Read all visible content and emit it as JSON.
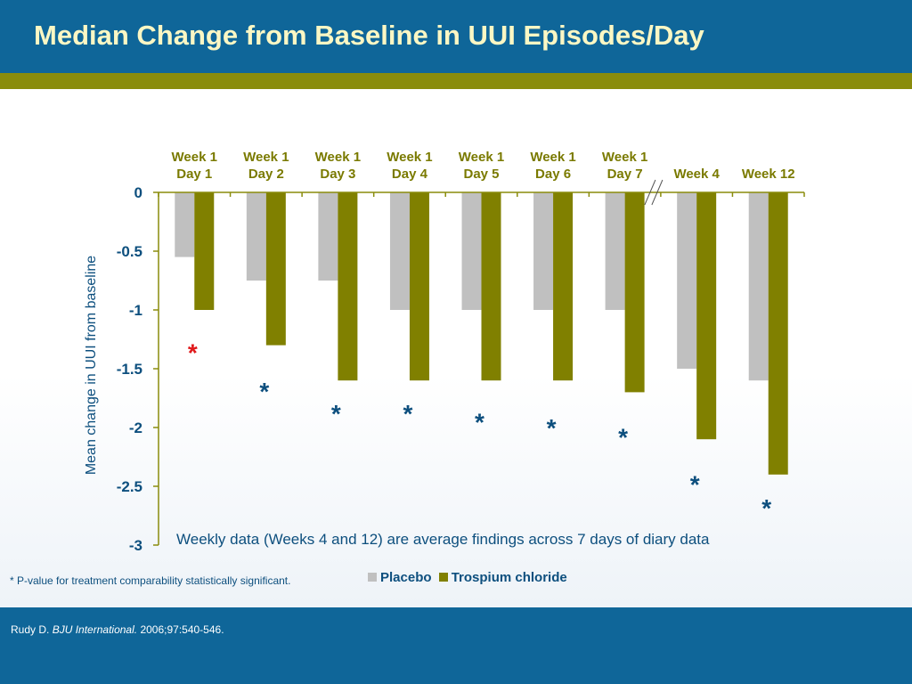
{
  "slide": {
    "title": "Median Change from Baseline in UUI Episodes/Day",
    "note": "Weekly data (Weeks 4 and 12) are average findings across 7 days of diary data",
    "footnote": "* P-value for treatment comparability statistically significant.",
    "citation": {
      "author": "Rudy D.",
      "journal": "BJU International.",
      "details": "2006;97:540-546."
    }
  },
  "colors": {
    "header": "#0f6699",
    "band": "#8a8c0c",
    "placebo": "#c0c0c0",
    "trospium": "#808000",
    "significance_first": "#e0191b",
    "significance": "#0d4f7e"
  },
  "chart_data": {
    "type": "bar",
    "title": "Median Change from Baseline in UUI Episodes/Day",
    "xlabel": "",
    "ylabel": "Mean change in UUI from baseline",
    "ylim": [
      -3,
      0
    ],
    "yticks": [
      0,
      -0.5,
      -1,
      -1.5,
      -2,
      -2.5,
      -3
    ],
    "ytick_labels": [
      "0",
      "-0.5",
      "-1",
      "-1.5",
      "-2",
      "-2.5",
      "-3"
    ],
    "x_axis_position": "top",
    "axis_break_after_index": 6,
    "categories": [
      [
        "Week 1",
        "Day 1"
      ],
      [
        "Week 1",
        "Day 2"
      ],
      [
        "Week 1",
        "Day 3"
      ],
      [
        "Week 1",
        "Day 4"
      ],
      [
        "Week 1",
        "Day 5"
      ],
      [
        "Week 1",
        "Day 6"
      ],
      [
        "Week 1",
        "Day 7"
      ],
      [
        "Week 4"
      ],
      [
        "Week 12"
      ]
    ],
    "series": [
      {
        "name": "Placebo",
        "values": [
          -0.55,
          -0.75,
          -0.75,
          -1.0,
          -1.0,
          -1.0,
          -1.0,
          -1.5,
          -1.6
        ]
      },
      {
        "name": "Trospium chloride",
        "values": [
          -1.0,
          -1.3,
          -1.6,
          -1.6,
          -1.6,
          -1.6,
          -1.7,
          -2.1,
          -2.4
        ]
      }
    ],
    "significance_markers": [
      {
        "label": "*",
        "y": -1.3
      },
      {
        "label": "*",
        "y": -1.63
      },
      {
        "label": "*",
        "y": -1.82
      },
      {
        "label": "*",
        "y": -1.82
      },
      {
        "label": "*",
        "y": -1.89
      },
      {
        "label": "*",
        "y": -1.94
      },
      {
        "label": "*",
        "y": -2.02
      },
      {
        "label": "*",
        "y": -2.42
      },
      {
        "label": "*",
        "y": -2.62
      }
    ],
    "legend": {
      "position": "bottom"
    },
    "grid": false
  }
}
